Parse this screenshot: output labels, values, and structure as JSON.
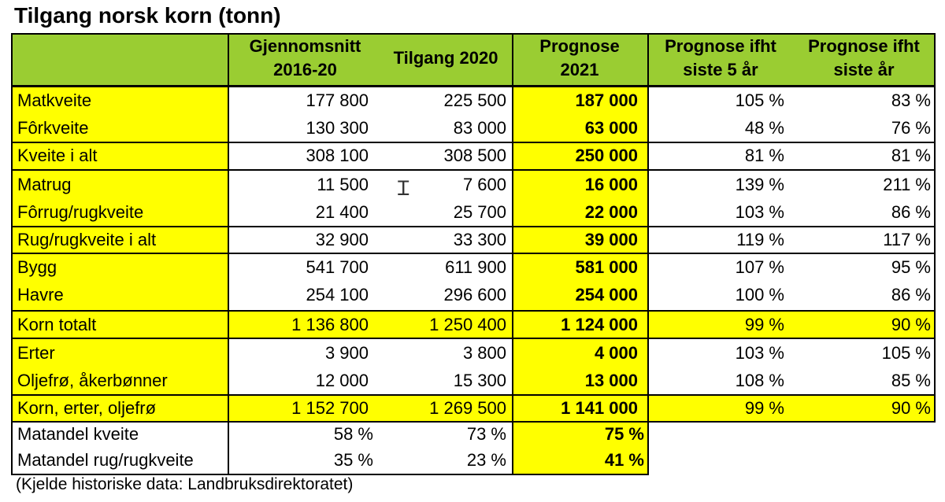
{
  "title": "Tilgang norsk korn (tonn)",
  "headers": {
    "h1": "Gjennomsnitt 2016-20",
    "h1a": "Gjennomsnitt",
    "h1b": "2016-20",
    "h2": "Tilgang 2020",
    "h3a": "Prognose",
    "h3b": "2021",
    "h4a": "Prognose ifht",
    "h4b": "siste 5 år",
    "h5a": "Prognose ifht",
    "h5b": "siste år"
  },
  "rows": [
    {
      "label": "Matkveite",
      "avg": "177 800",
      "y2020": "225 500",
      "prog": "187 000",
      "p5": "105 %",
      "p1": "83 %"
    },
    {
      "label": "Fôrkveite",
      "avg": "130 300",
      "y2020": "83 000",
      "prog": "63 000",
      "p5": "48 %",
      "p1": "76 %"
    },
    {
      "label": "Kveite i alt",
      "avg": "308 100",
      "y2020": "308 500",
      "prog": "250 000",
      "p5": "81 %",
      "p1": "81 %"
    },
    {
      "label": "Matrug",
      "avg": "11 500",
      "y2020": "7 600",
      "prog": "16 000",
      "p5": "139 %",
      "p1": "211 %"
    },
    {
      "label": "Fôrrug/rugkveite",
      "avg": "21 400",
      "y2020": "25 700",
      "prog": "22 000",
      "p5": "103 %",
      "p1": "86 %"
    },
    {
      "label": "Rug/rugkveite i alt",
      "avg": "32 900",
      "y2020": "33 300",
      "prog": "39 000",
      "p5": "119 %",
      "p1": "117 %"
    },
    {
      "label": "Bygg",
      "avg": "541 700",
      "y2020": "611 900",
      "prog": "581 000",
      "p5": "107 %",
      "p1": "95 %"
    },
    {
      "label": "Havre",
      "avg": "254 100",
      "y2020": "296 600",
      "prog": "254 000",
      "p5": "100 %",
      "p1": "86 %"
    },
    {
      "label": "Korn totalt",
      "avg": "1 136 800",
      "y2020": "1 250 400",
      "prog": "1 124 000",
      "p5": "99 %",
      "p1": "90 %"
    },
    {
      "label": "Erter",
      "avg": "3 900",
      "y2020": "3 800",
      "prog": "4 000",
      "p5": "103 %",
      "p1": "105 %"
    },
    {
      "label": "Oljefrø, åkerbønner",
      "avg": "12 000",
      "y2020": "15 300",
      "prog": "13 000",
      "p5": "108 %",
      "p1": "85 %"
    },
    {
      "label": "Korn, erter, oljefrø",
      "avg": "1 152 700",
      "y2020": "1 269 500",
      "prog": "1 141 000",
      "p5": "99 %",
      "p1": "90 %"
    }
  ],
  "shares": [
    {
      "label": "Matandel kveite",
      "avg": "58 %",
      "y2020": "73 %",
      "prog": "75 %"
    },
    {
      "label": "Matandel rug/rugkveite",
      "avg": "35 %",
      "y2020": "23 %",
      "prog": "41 %"
    }
  ],
  "source": "(Kjelde historiske data: Landbruksdirektoratet)"
}
